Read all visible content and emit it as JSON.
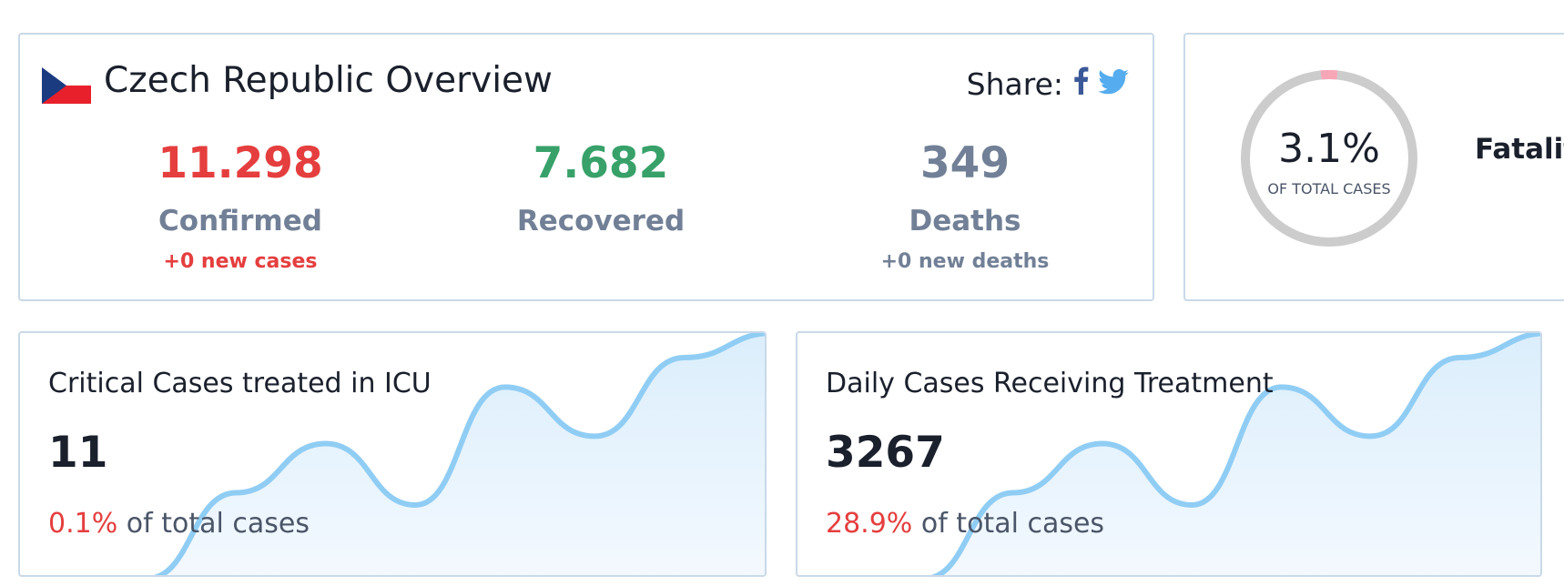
{
  "overview": {
    "title": "Czech Republic Overview",
    "share_label": "Share:",
    "icons": [
      "czech-flag",
      "facebook-icon",
      "twitter-icon"
    ],
    "confirmed": {
      "value": "11.298",
      "label": "Confirmed",
      "delta": "+0 new cases",
      "color": "#e53e3e"
    },
    "recovered": {
      "value": "7.682",
      "label": "Recovered",
      "color": "#38a169"
    },
    "deaths": {
      "value": "349",
      "label": "Deaths",
      "delta": "+0 new deaths",
      "color": "#718096"
    }
  },
  "fatality": {
    "value": "3.1%",
    "sub": "OF TOTAL CASES",
    "label": "Fatality",
    "rate": 0.031,
    "ring_color": "#cccccc",
    "accent_color": "#f7a6b8"
  },
  "icu": {
    "title": "Critical Cases treated in ICU",
    "value": "11",
    "pct": "0.1%",
    "pct_suffix": "of total cases",
    "sparkline": [
      0,
      0.35,
      0.55,
      0.3,
      0.78,
      0.58,
      0.9,
      1.0
    ]
  },
  "treatment": {
    "title": "Daily Cases Receiving Treatment",
    "value": "3267",
    "pct": "28.9%",
    "pct_suffix": "of total cases",
    "sparkline": [
      0,
      0.35,
      0.55,
      0.3,
      0.78,
      0.58,
      0.9,
      1.0
    ]
  },
  "colors": {
    "sparkline_line": "#90cdf4",
    "sparkline_fill": "#dbeefc",
    "card_border": "#c9d9e8"
  }
}
